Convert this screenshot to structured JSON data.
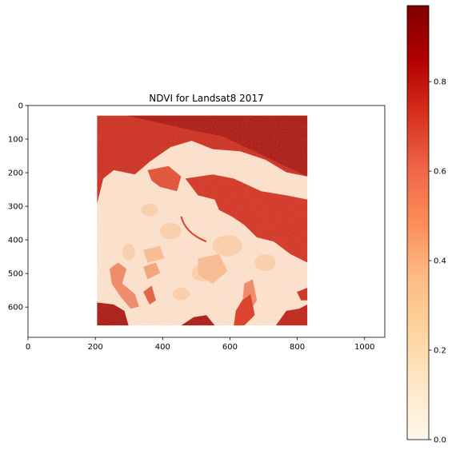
{
  "chart_data": {
    "type": "heatmap",
    "title": "NDVI for Landsat8 2017",
    "xlabel": "",
    "ylabel": "",
    "xlim": [
      0,
      1060
    ],
    "ylim": [
      690,
      0
    ],
    "x_ticks": [
      0,
      200,
      400,
      600,
      800,
      1000
    ],
    "y_ticks": [
      0,
      100,
      200,
      300,
      400,
      500,
      600
    ],
    "image_extent": {
      "x": [
        205,
        830
      ],
      "y": [
        30,
        655
      ]
    },
    "colormap": "OrRd",
    "colormap_stops": [
      "#fff7ec",
      "#fee8c8",
      "#fdd49e",
      "#fdbb84",
      "#fc8d59",
      "#ef6548",
      "#d7301f",
      "#b30000",
      "#7f0000"
    ],
    "colorbar": {
      "range": [
        0.0,
        0.97
      ],
      "ticks": [
        0.0,
        0.2,
        0.4,
        0.6,
        0.8
      ]
    },
    "grid": false
  }
}
